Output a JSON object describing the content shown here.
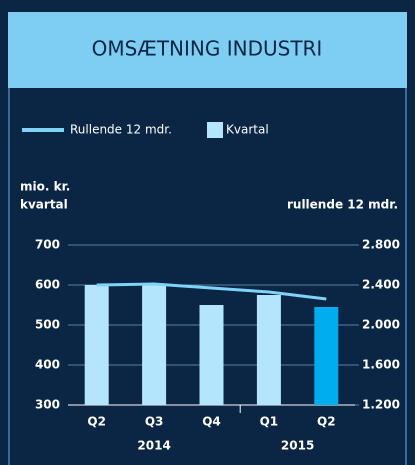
{
  "chart_data": {
    "type": "bar_line",
    "title": "OMSÆTNING INDUSTRI",
    "y_label": [
      "mio. kr.",
      "kvartal"
    ],
    "y2_label": "rullende 12 mdr.",
    "categories": [
      "Q2",
      "Q3",
      "Q4",
      "Q1",
      "Q2"
    ],
    "year_labels": [
      "2014",
      "2015"
    ],
    "series": [
      {
        "name": "Rullende 12 mdr.",
        "type": "line",
        "axis": "y2",
        "color": "#7fd3f7",
        "values": [
          2400,
          2410,
          2370,
          2330,
          2260
        ]
      },
      {
        "name": "Kvartal",
        "type": "bar",
        "color": "#b3e5fc",
        "colors": [
          "#b3e5fc",
          "#b3e5fc",
          "#b3e5fc",
          "#b3e5fc",
          "#00aeef"
        ],
        "values": [
          600,
          600,
          550,
          575,
          545
        ]
      }
    ],
    "ylim": [
      300,
      700
    ],
    "yticks": [
      300,
      400,
      500,
      600,
      700
    ],
    "y2lim": [
      1200,
      2800
    ],
    "y2ticks": [
      {
        "value": 1200,
        "label": "1.200"
      },
      {
        "value": 1600,
        "label": "1.600"
      },
      {
        "value": 2000,
        "label": "2.000"
      },
      {
        "value": 2400,
        "label": "2.400"
      },
      {
        "value": 2800,
        "label": "2.800"
      }
    ],
    "grid": true
  }
}
